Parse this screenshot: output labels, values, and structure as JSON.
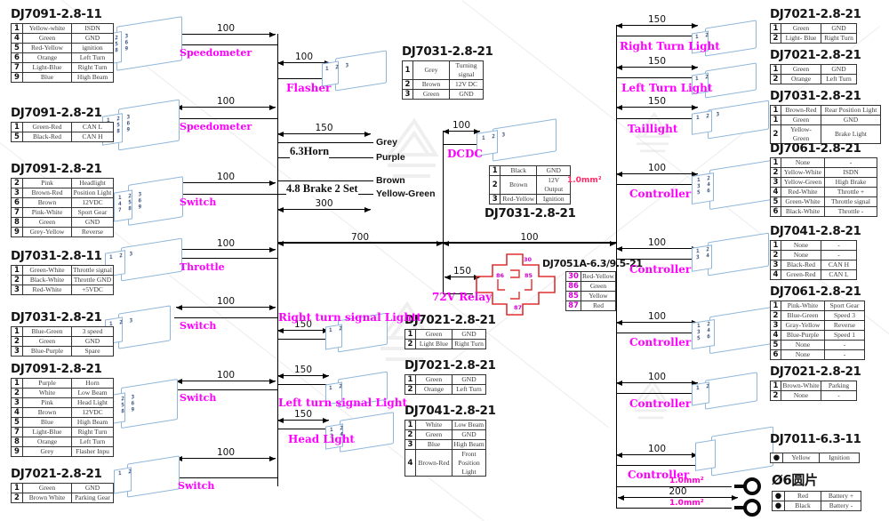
{
  "diagram": {
    "left_sections": [
      {
        "title": "DJ7091-2.8-11",
        "rows": [
          [
            "1",
            "Yellow-white",
            "ISDN"
          ],
          [
            "4",
            "Green",
            "GND"
          ],
          [
            "5",
            "Red-Yellow",
            "ignition"
          ],
          [
            "6",
            "Orange",
            "Left Turn"
          ],
          [
            "7",
            "Light-Blue",
            "Right Turn"
          ],
          [
            "9",
            "Blue",
            "High Beam"
          ]
        ]
      },
      {
        "title": "DJ7091-2.8-21",
        "rows": [
          [
            "1",
            "Green-Red",
            "CAN L"
          ],
          [
            "5",
            "Black-Red",
            "CAN H"
          ]
        ]
      },
      {
        "title": "DJ7091-2.8-21",
        "rows": [
          [
            "2",
            "Pink",
            "Headlight"
          ],
          [
            "3",
            "Brown-Red",
            "Position Light"
          ],
          [
            "6",
            "Brown",
            "12VDC"
          ],
          [
            "7",
            "Pink-White",
            "Sport Gear"
          ],
          [
            "8",
            "Green",
            "GND"
          ],
          [
            "9",
            "Grey-Yellow",
            "Reverse"
          ]
        ]
      },
      {
        "title": "DJ7031-2.8-11",
        "rows": [
          [
            "1",
            "Green-White",
            "Throttle signal"
          ],
          [
            "2",
            "Black-White",
            "Throttle GND"
          ],
          [
            "3",
            "Red-White",
            "+5VDC"
          ]
        ]
      },
      {
        "title": "DJ7031-2.8-21",
        "rows": [
          [
            "1",
            "Blue-Green",
            "3 speed"
          ],
          [
            "2",
            "Green",
            "GND"
          ],
          [
            "3",
            "Blue-Purple",
            "Spare"
          ]
        ]
      },
      {
        "title": "DJ7091-2.8-21",
        "rows": [
          [
            "1",
            "Purple",
            "Horn"
          ],
          [
            "2",
            "White",
            "Low Beam"
          ],
          [
            "3",
            "Pink",
            "Head Light"
          ],
          [
            "4",
            "Brown",
            "12VDC"
          ],
          [
            "5",
            "Blue",
            "High Beam"
          ],
          [
            "7",
            "Light-Blue",
            "Right Turn"
          ],
          [
            "8",
            "Orange",
            "Left Turn"
          ],
          [
            "9",
            "Grey",
            "Flasher Inpu"
          ]
        ]
      },
      {
        "title": "DJ7021-2.8-21",
        "rows": [
          [
            "1",
            "Green",
            "GND"
          ],
          [
            "2",
            "Brown White",
            "Parking Gear"
          ]
        ]
      }
    ],
    "middle_sections": [
      {
        "title": "DJ7031-2.8-21",
        "rows": [
          [
            "1",
            "Grey",
            "Turning signal"
          ],
          [
            "2",
            "Brown",
            "12V DC"
          ],
          [
            "3",
            "Green",
            "GND"
          ]
        ]
      },
      {
        "title": "DJ7031-2.8-21",
        "rows": [
          [
            "1",
            "Black",
            "GND"
          ],
          [
            "2",
            "Brown",
            "12V Output"
          ],
          [
            "3",
            "Red-Yellow",
            "Ignition"
          ]
        ]
      },
      {
        "title": "DJ7051A-6.3/9.5-21",
        "rows": [
          [
            "30",
            "Red-Yellow"
          ],
          [
            "86",
            "Green"
          ],
          [
            "85",
            "Yellow"
          ],
          [
            "87",
            "Red"
          ]
        ]
      },
      {
        "title": "DJ7021-2.8-21",
        "rows": [
          [
            "1",
            "Green",
            "GND"
          ],
          [
            "2",
            "Light Blue",
            "Right Turn"
          ]
        ]
      },
      {
        "title": "DJ7021-2.8-21",
        "rows": [
          [
            "1",
            "Green",
            "GND"
          ],
          [
            "2",
            "Orange",
            "Left Turn"
          ]
        ]
      },
      {
        "title": "DJ7041-2.8-21",
        "rows": [
          [
            "1",
            "White",
            "Low Beam"
          ],
          [
            "2",
            "Green",
            "GND"
          ],
          [
            "3",
            "Blue",
            "High Beam"
          ],
          [
            "4",
            "Brown-Red",
            "Front Position Light"
          ]
        ]
      }
    ],
    "right_sections": [
      {
        "title": "DJ7021-2.8-21",
        "rows": [
          [
            "1",
            "Green",
            "GND"
          ],
          [
            "2",
            "Light- Blue",
            "Right Turn"
          ]
        ]
      },
      {
        "title": "DJ7021-2.8-21",
        "rows": [
          [
            "1",
            "Green",
            "GND"
          ],
          [
            "2",
            "Orange",
            "Left Turn"
          ]
        ]
      },
      {
        "title": "DJ7031-2.8-21",
        "rows": [
          [
            "1",
            "Brown-Red",
            "Rear Position Light"
          ],
          [
            "1",
            "Green",
            "GND"
          ],
          [
            "2",
            "Yellow-Green",
            "Brake Light"
          ]
        ]
      },
      {
        "title": "DJ7061-2.8-21",
        "rows": [
          [
            "1",
            "None",
            "-"
          ],
          [
            "2",
            "Yellow-White",
            "ISDN"
          ],
          [
            "3",
            "Yellow-Green",
            "High Brake"
          ],
          [
            "4",
            "Red-White",
            "Throttle +"
          ],
          [
            "5",
            "Green-White",
            "Throttle signal"
          ],
          [
            "6",
            "Black-White",
            "Throttle -"
          ]
        ]
      },
      {
        "title": "DJ7041-2.8-21",
        "rows": [
          [
            "1",
            "None",
            "-"
          ],
          [
            "2",
            "None",
            "-"
          ],
          [
            "3",
            "Black-Red",
            "CAN H"
          ],
          [
            "4",
            "Green-Red",
            "CAN L"
          ]
        ]
      },
      {
        "title": "DJ7061-2.8-21",
        "rows": [
          [
            "1",
            "Pink-White",
            "Sport Gear"
          ],
          [
            "2",
            "Blue-Green",
            "Speed 3"
          ],
          [
            "3",
            "Gray-Yellow",
            "Reverse"
          ],
          [
            "4",
            "Blue-Purple",
            "Speed 1"
          ],
          [
            "5",
            "None",
            "-"
          ],
          [
            "6",
            "None",
            "-"
          ]
        ]
      },
      {
        "title": "DJ7021-2.8-21",
        "rows": [
          [
            "1",
            "Brown-White",
            "Parking"
          ],
          [
            "2",
            "None",
            "-"
          ]
        ]
      },
      {
        "title": "DJ7011-6.3-11",
        "rows": [
          [
            "●",
            "Yellow",
            "Ignition"
          ]
        ]
      },
      {
        "title": "Ø6圆片",
        "rows": [
          [
            "●",
            "Red",
            "Battery +"
          ],
          [
            "●",
            "Black",
            "Battery -"
          ]
        ]
      }
    ],
    "labels": {
      "speedometer_1": "Speedometer",
      "speedometer_2": "Speedometer",
      "switch_1": "Switch",
      "throttle": "Throttle",
      "switch_2": "Switch",
      "switch_3": "Switch",
      "switch_4": "Switch",
      "flasher": "Flasher",
      "horn": "6.3Horn",
      "brake": "4.8 Brake 2 Set",
      "dcdc": "DCDC",
      "relay": "72V Relay",
      "right_turn_signal": "Right turn signal Lightt",
      "left_turn_signal": "Left turn signal Light",
      "head_light": "Head Light",
      "right_turn_light": "Right Turn Light",
      "left_turn_light": "Left Turn Light",
      "taillight": "Taillight",
      "controller": "Controller",
      "wire_gauge": "1.0mm²"
    },
    "wire_tags": {
      "grey": "Grey",
      "purple": "Purple",
      "brown": "Brown",
      "yellow_green": "Yellow-Green"
    },
    "dims": {
      "d100": "100",
      "d150": "150",
      "d200": "200",
      "d300": "300",
      "d700": "700"
    },
    "relay_pins": {
      "p30": "30",
      "p86": "86",
      "p85": "85",
      "p87": "87"
    },
    "pins": {
      "p2": "1 2",
      "p3": "1 2 3",
      "p4": "1 2\n3 4",
      "p6": "1 2\n3 4\n5 6",
      "p9": "1 2 3\n4 5 6\n7 8 9"
    },
    "colors": {
      "label_magenta": "#ff00ff",
      "relay_red": "#e03030",
      "connector_blue": "#8fb6da",
      "gauge_pink": "#ff00cc"
    }
  }
}
